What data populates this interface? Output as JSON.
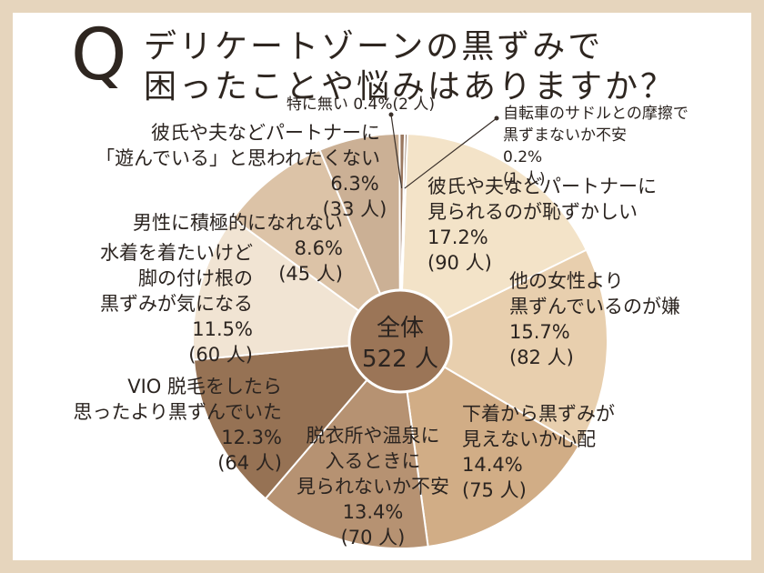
{
  "title": {
    "q": "Q",
    "line1": "デリケートゾーンの黒ずみで",
    "line2": "困ったことや悩みはありますか？"
  },
  "chart_data": {
    "type": "pie",
    "title": "Q デリケートゾーンの黒ずみで困ったことや悩みはありますか？",
    "center_label": [
      "全体",
      "522 人"
    ],
    "slices": [
      {
        "label": [
          "彼氏や夫などパートナーに",
          "見られるのが恥ずかしい"
        ],
        "percent": "17.2%",
        "count": "(90 人)",
        "value": 17.2,
        "color": "#f3e3c8"
      },
      {
        "label": [
          "他の女性より",
          "黒ずんでいるのが嫌"
        ],
        "percent": "15.7%",
        "count": "(82 人)",
        "value": 15.7,
        "color": "#e8cfae"
      },
      {
        "label": [
          "下着から黒ずみが",
          "見えないか心配"
        ],
        "percent": "14.4%",
        "count": "(75 人)",
        "value": 14.4,
        "color": "#d1ad86"
      },
      {
        "label": [
          "脱衣所や温泉に",
          "入るときに",
          "見られないか不安"
        ],
        "percent": "13.4%",
        "count": "(70 人)",
        "value": 13.4,
        "color": "#b69272"
      },
      {
        "label": [
          "VIO 脱毛をしたら",
          "思ったより黒ずんでいた"
        ],
        "percent": "12.3%",
        "count": "(64 人)",
        "value": 12.3,
        "color": "#967254"
      },
      {
        "label": [
          "水着を着たいけど",
          "脚の付け根の",
          "黒ずみが気になる"
        ],
        "percent": "11.5%",
        "count": "(60 人)",
        "value": 11.5,
        "color": "#f1e4d3"
      },
      {
        "label": [
          "男性に積極的になれない"
        ],
        "percent": "8.6%",
        "count": "(45 人)",
        "value": 8.6,
        "color": "#dcc3a7"
      },
      {
        "label": [
          "彼氏や夫などパートナーに",
          "「遊んでいる」と思われたくない"
        ],
        "percent": "6.3%",
        "count": "(33 人)",
        "value": 6.3,
        "color": "#cbb095"
      },
      {
        "label": [
          "特に無い"
        ],
        "percent": "0.4%",
        "count": "(2 人)",
        "value": 0.4,
        "color": "#9a7860"
      },
      {
        "label": [
          "自転車のサドルとの摩擦で",
          "黒ずまないか不安"
        ],
        "percent": "0.2%",
        "count": "(1 人)",
        "value": 0.2,
        "color": "#7d5e48"
      }
    ]
  },
  "colors": {
    "background_border": "#e6d5bd",
    "center_circle": "#9b7557",
    "text": "#2b2420"
  }
}
